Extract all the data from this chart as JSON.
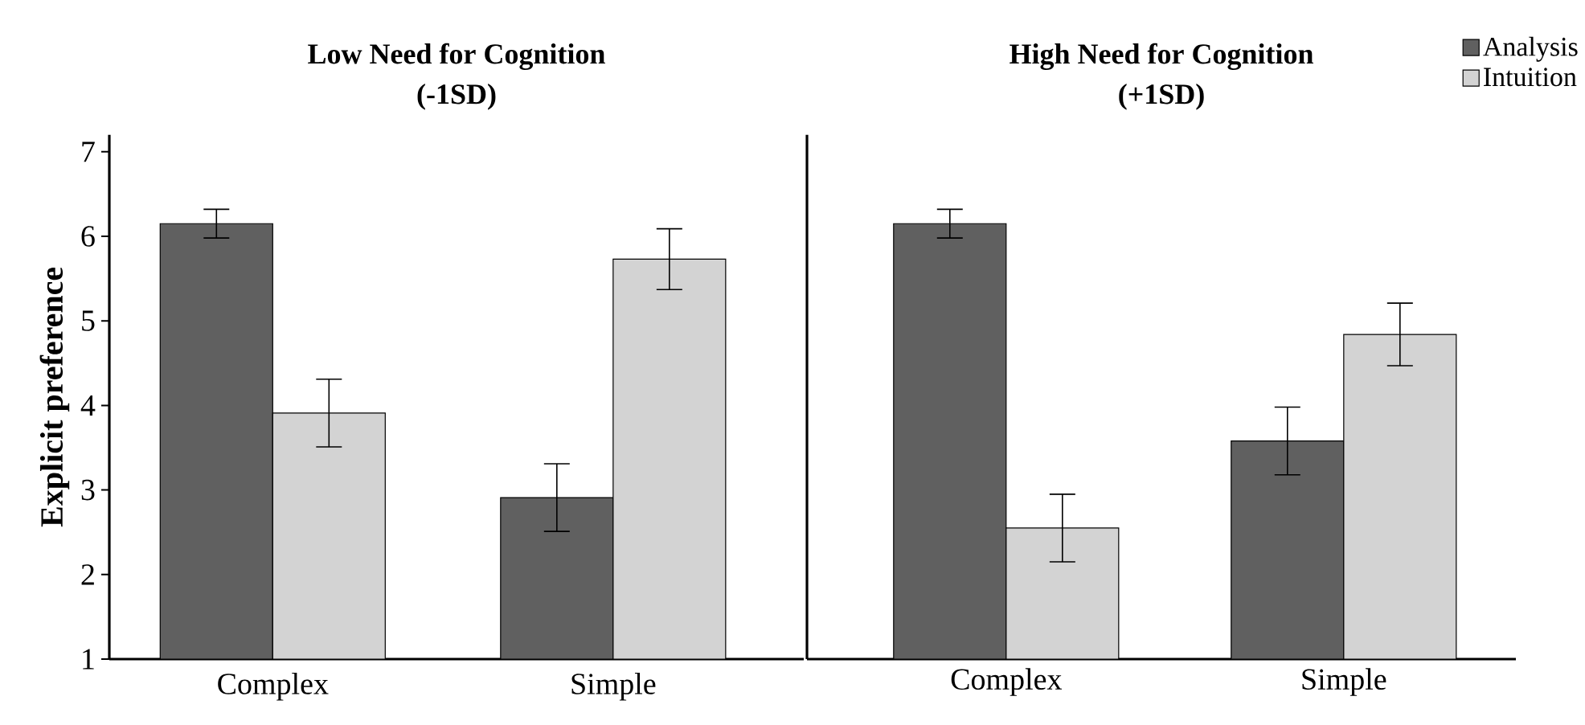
{
  "chart_data": [
    {
      "type": "bar",
      "title": "Low Need for Cognition",
      "subtitle": "(-1SD)",
      "ylabel": "Explicit preference",
      "categories": [
        "Complex",
        "Simple"
      ],
      "ylim": [
        1,
        7.2
      ],
      "yticks": [
        1,
        2,
        3,
        4,
        5,
        6,
        7
      ],
      "grid": false,
      "series": [
        {
          "color": "#606060",
          "values": [
            6.15,
            2.91
          ],
          "errors": [
            0.17,
            0.4
          ]
        },
        {
          "color": "#d3d3d3",
          "values": [
            3.91,
            5.73
          ],
          "errors": [
            0.4,
            0.36
          ]
        }
      ]
    },
    {
      "type": "bar",
      "title": "High Need for Cognition",
      "subtitle": "(+1SD)",
      "categories": [
        "Complex",
        "Simple"
      ],
      "ylim": [
        1,
        7.2
      ],
      "yticks": [
        1,
        2,
        3,
        4,
        5,
        6,
        7
      ],
      "tick_labels": "x",
      "legend": "top right",
      "grid": false,
      "series": [
        {
          "name": "Analysis",
          "color": "#606060",
          "values": [
            6.15,
            3.58
          ],
          "errors": [
            0.17,
            0.4
          ]
        },
        {
          "name": "Intuition",
          "color": "#d3d3d3",
          "values": [
            2.55,
            4.84
          ],
          "errors": [
            0.4,
            0.37
          ]
        }
      ]
    }
  ]
}
